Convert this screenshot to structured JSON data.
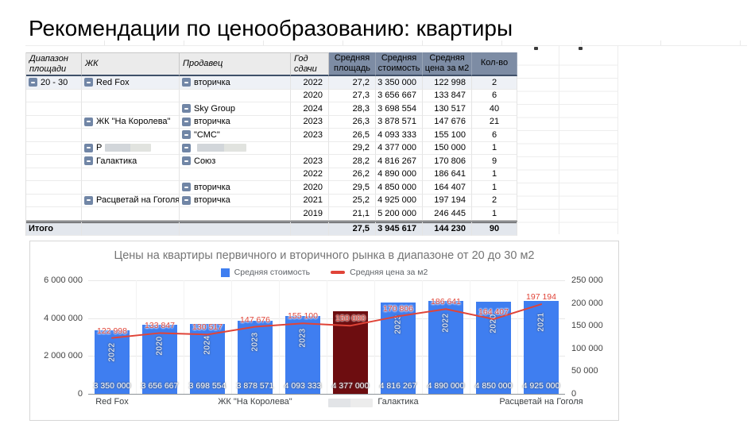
{
  "page": {
    "title": "Рекомендации по ценообразованию: квартиры"
  },
  "table": {
    "headers": [
      "Диапазон площади",
      "ЖК",
      "Продавец",
      "Год сдачи",
      "Средняя площадь",
      "Средняя стоимость",
      "Средняя цена за м2",
      "Кол-во"
    ],
    "rows": [
      {
        "range": "20 - 30",
        "zhk": "Red Fox",
        "seller": "вторичка",
        "year": "2022",
        "area": "27,2",
        "cost": "3 350 000",
        "price_m2": "122 998",
        "count": "2"
      },
      {
        "year": "2020",
        "area": "27,3",
        "cost": "3 656 667",
        "price_m2": "133 847",
        "count": "6"
      },
      {
        "seller": "Sky Group",
        "year": "2024",
        "area": "28,3",
        "cost": "3 698 554",
        "price_m2": "130 517",
        "count": "40"
      },
      {
        "zhk": "ЖК \"На Королева\"",
        "seller": "вторичка",
        "year": "2023",
        "area": "26,3",
        "cost": "3 878 571",
        "price_m2": "147 676",
        "count": "21"
      },
      {
        "seller": "\"СМС\"",
        "year": "2023",
        "area": "26,5",
        "cost": "4 093 333",
        "price_m2": "155 100",
        "count": "6"
      },
      {
        "zhk": "Р",
        "zhk_redacted": true,
        "seller": "",
        "seller_redacted": true,
        "year": "",
        "area": "29,2",
        "cost": "4 377 000",
        "price_m2": "150 000",
        "count": "1"
      },
      {
        "zhk": "Галактика",
        "seller": "Союз",
        "year": "2023",
        "area": "28,2",
        "cost": "4 816 267",
        "price_m2": "170 806",
        "count": "9"
      },
      {
        "year": "2022",
        "area": "26,2",
        "cost": "4 890 000",
        "price_m2": "186 641",
        "count": "1"
      },
      {
        "seller": "вторичка",
        "year": "2020",
        "area": "29,5",
        "cost": "4 850 000",
        "price_m2": "164 407",
        "count": "1"
      },
      {
        "zhk": "Расцветай на Гоголя",
        "seller": "вторичка",
        "year": "2021",
        "area": "25,2",
        "cost": "4 925 000",
        "price_m2": "197 194",
        "count": "2"
      },
      {
        "year": "2019",
        "area": "21,1",
        "cost": "5 200 000",
        "price_m2": "246 445",
        "count": "1"
      }
    ],
    "total": {
      "label": "Итого",
      "area": "27,5",
      "cost": "3 945 617",
      "price_m2": "144 230",
      "count": "90"
    },
    "colors": {
      "header_accent": "#7d8ca4",
      "header_gray": "#ebebeb",
      "collapse_button": "#7186a6"
    }
  },
  "chart_data": {
    "type": "bar",
    "title": "Цены на квартиры первичного и вторичного рынка в диапазоне от 20 до 30 м2",
    "categories": [
      "2022",
      "2020",
      "2024",
      "2023",
      "2023",
      "",
      "2023",
      "2022",
      "2020",
      "2021"
    ],
    "groups": [
      {
        "label": "Red Fox",
        "start": 0,
        "count": 3,
        "redacted": false
      },
      {
        "label": "ЖК \"На Королева\"",
        "start": 3,
        "count": 2,
        "redacted": false
      },
      {
        "label": "",
        "start": 5,
        "count": 1,
        "redacted": true
      },
      {
        "label": "Галактика",
        "start": 6,
        "count": 3,
        "redacted": false
      },
      {
        "label": "Расцветай на Гоголя",
        "start": 9,
        "count": 1,
        "redacted": false
      }
    ],
    "series": [
      {
        "name": "Средняя стоимость",
        "type": "bar",
        "axis": "left",
        "values": [
          3350000,
          3656667,
          3698554,
          3878571,
          4093333,
          4377000,
          4816267,
          4890000,
          4850000,
          4925000
        ],
        "labels": [
          "3 350 000",
          "3 656 667",
          "3 698 554",
          "3 878 571",
          "4 093 333",
          "4 377 000",
          "4 816 267",
          "4 890 000",
          "4 850 000",
          "4 925 000"
        ]
      },
      {
        "name": "Средняя цена за м2",
        "type": "line",
        "axis": "right",
        "values": [
          122998,
          133847,
          130517,
          147676,
          155100,
          150000,
          170806,
          186641,
          164407,
          197194
        ],
        "labels": [
          "122 998",
          "133 847",
          "130 517",
          "147 676",
          "155 100",
          "150 000",
          "170 806",
          "186 641",
          "164 407",
          "197 194"
        ]
      }
    ],
    "left_axis": {
      "max": 6000000,
      "ticks": [
        {
          "v": 6000000,
          "label": "6 000 000"
        },
        {
          "v": 4000000,
          "label": "4 000 000"
        },
        {
          "v": 2000000,
          "label": "2 000 000"
        },
        {
          "v": 0,
          "label": "0"
        }
      ]
    },
    "right_axis": {
      "max": 250000,
      "ticks": [
        {
          "v": 250000,
          "label": "250 000"
        },
        {
          "v": 200000,
          "label": "200 000"
        },
        {
          "v": 150000,
          "label": "150 000"
        },
        {
          "v": 100000,
          "label": "100 000"
        },
        {
          "v": 50000,
          "label": "50 000"
        },
        {
          "v": 0,
          "label": "0"
        }
      ]
    },
    "highlight_index": 5,
    "legend_position": "top",
    "grid": true,
    "colors": {
      "bar": "#3f7ef0",
      "bar_highlight": "#6d0d10",
      "line": "#e04438"
    }
  }
}
